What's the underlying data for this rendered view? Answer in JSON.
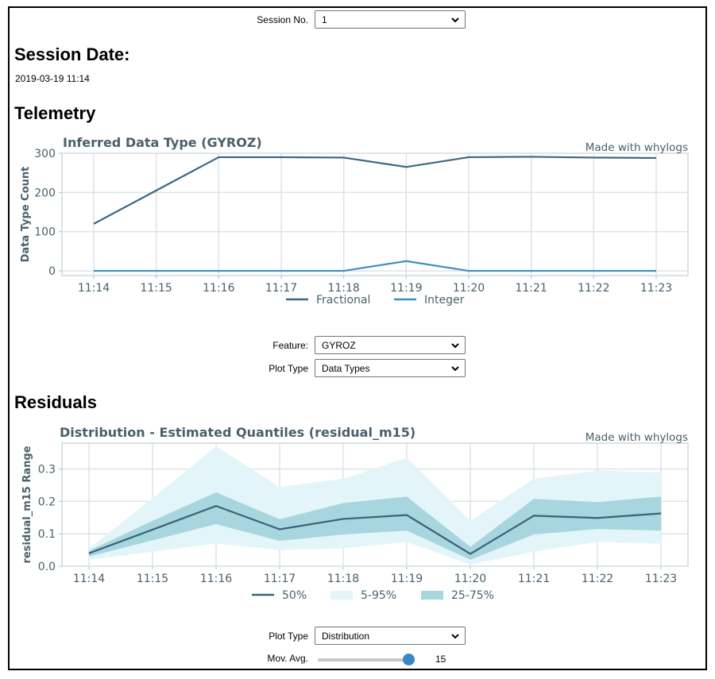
{
  "session": {
    "label": "Session No.",
    "value": "1"
  },
  "session_date": {
    "heading": "Session Date:",
    "value": "2019-03-19 11:14"
  },
  "telemetry": {
    "heading": "Telemetry",
    "feature_label": "Feature:",
    "feature_value": "GYROZ",
    "plot_type_label": "Plot Type",
    "plot_type_value": "Data Types"
  },
  "residuals": {
    "heading": "Residuals",
    "plot_type_label": "Plot Type",
    "plot_type_value": "Distribution",
    "mov_avg_label": "Mov. Avg.",
    "mov_avg_value": "15",
    "mov_avg_fraction": 0.95
  },
  "colors": {
    "fractional": "#3d6682",
    "integer": "#3e8ec2",
    "band_outer": "#e3f5f8",
    "band_inner": "#a8d6de",
    "median": "#3b6278",
    "title": "#4a5f6b"
  },
  "chart_data": [
    {
      "type": "line",
      "title": "Inferred Data Type (GYROZ)",
      "watermark": "Made with whylogs",
      "xlabel": "",
      "ylabel": "Data Type Count",
      "categories": [
        "11:14",
        "11:15",
        "11:16",
        "11:17",
        "11:18",
        "11:19",
        "11:20",
        "11:21",
        "11:22",
        "11:23"
      ],
      "ylim": [
        0,
        300
      ],
      "yticks": [
        0,
        100,
        200,
        300
      ],
      "grid": true,
      "legend": "bottom",
      "series": [
        {
          "name": "Fractional",
          "values": [
            120,
            205,
            290,
            290,
            289,
            265,
            290,
            291,
            289,
            288
          ]
        },
        {
          "name": "Integer",
          "values": [
            0,
            0,
            0,
            0,
            0,
            25,
            0,
            0,
            0,
            0
          ]
        }
      ]
    },
    {
      "type": "area",
      "title": "Distribution - Estimated Quantiles (residual_m15)",
      "watermark": "Made with whylogs",
      "xlabel": "",
      "ylabel": "residual_m15 Range",
      "categories": [
        "11:14",
        "11:15",
        "11:16",
        "11:17",
        "11:18",
        "11:19",
        "11:20",
        "11:21",
        "11:22",
        "11:23"
      ],
      "ylim": [
        0,
        0.38
      ],
      "yticks": [
        "0.0",
        "0.1",
        "0.2",
        "0.3"
      ],
      "ytick_values": [
        0,
        0.1,
        0.2,
        0.3
      ],
      "grid": true,
      "legend": "bottom",
      "median": {
        "name": "50%",
        "values": [
          0.04,
          0.113,
          0.186,
          0.114,
          0.146,
          0.158,
          0.038,
          0.156,
          0.149,
          0.163
        ]
      },
      "band_5_95": {
        "name": "5-95%",
        "low": [
          0.02,
          0.045,
          0.07,
          0.05,
          0.055,
          0.075,
          0.005,
          0.045,
          0.075,
          0.07
        ],
        "high": [
          0.055,
          0.21,
          0.37,
          0.245,
          0.27,
          0.335,
          0.14,
          0.27,
          0.295,
          0.29
        ]
      },
      "band_25_75": {
        "name": "25-75%",
        "low": [
          0.03,
          0.08,
          0.13,
          0.078,
          0.098,
          0.11,
          0.02,
          0.098,
          0.115,
          0.11
        ],
        "high": [
          0.048,
          0.14,
          0.228,
          0.145,
          0.195,
          0.215,
          0.06,
          0.208,
          0.198,
          0.215
        ]
      }
    }
  ]
}
